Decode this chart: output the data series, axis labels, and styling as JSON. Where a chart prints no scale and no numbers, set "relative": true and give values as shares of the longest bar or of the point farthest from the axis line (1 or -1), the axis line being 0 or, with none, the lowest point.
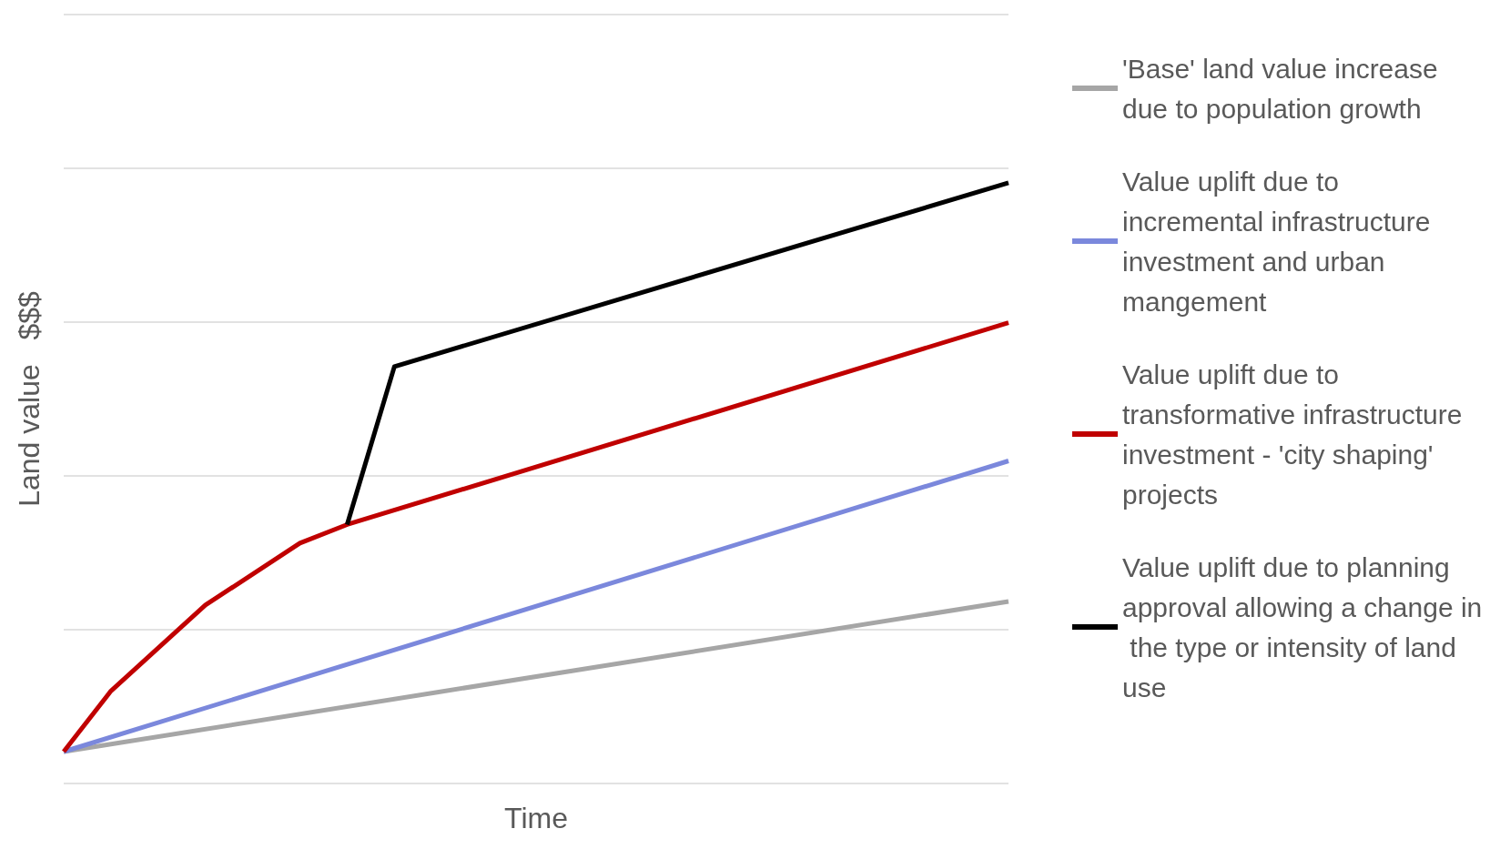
{
  "chart_data": {
    "type": "line",
    "relative": true,
    "xlabel": "Time",
    "ylabel": "Land value   $$$",
    "grid": "y",
    "legend": "right",
    "marker": "none",
    "line_style": "solid",
    "categories": [
      null,
      null,
      null,
      null,
      null,
      null,
      null,
      null,
      null,
      null,
      null,
      null,
      null,
      null,
      null,
      null,
      null,
      null,
      null,
      null,
      null
    ],
    "series": [
      {
        "name": "'Base' land value increase due to population growth",
        "color": "#a6a6a6",
        "values": [
          0.053,
          null,
          null,
          null,
          null,
          null,
          null,
          null,
          null,
          null,
          null,
          null,
          null,
          null,
          null,
          null,
          null,
          null,
          null,
          null,
          0.303
        ]
      },
      {
        "name": "Value uplift due to incremental infrastructure investment and urban mangement",
        "color": "#7b88dc",
        "values": [
          0.053,
          null,
          null,
          null,
          null,
          null,
          null,
          null,
          null,
          null,
          null,
          null,
          null,
          null,
          null,
          null,
          null,
          null,
          null,
          null,
          0.537
        ]
      },
      {
        "name": "Value uplift due to transformative infrastructure investment - 'city shaping' projects",
        "color": "#c00000",
        "values": [
          0.053,
          0.154,
          null,
          0.297,
          null,
          0.4,
          0.431,
          null,
          null,
          null,
          null,
          null,
          null,
          null,
          null,
          null,
          null,
          null,
          null,
          null,
          0.767
        ]
      },
      {
        "name": "Value uplift due to planning approval allowing a change in the type or intensity of land use",
        "color": "#000000",
        "values": [
          null,
          null,
          null,
          null,
          null,
          null,
          0.431,
          0.694,
          null,
          null,
          null,
          null,
          null,
          null,
          null,
          null,
          null,
          null,
          null,
          null,
          1.0
        ]
      }
    ]
  }
}
